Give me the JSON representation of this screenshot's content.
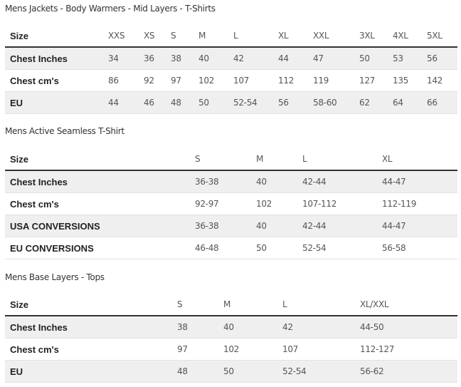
{
  "tables": [
    {
      "title": "Mens Jackets - Body Warmers - Mid Layers - T-Shirts",
      "header": [
        "Size",
        "XXS",
        "XS",
        "S",
        "M",
        "L",
        "XL",
        "XXL",
        "3XL",
        "4XL",
        "5XL"
      ],
      "rows": [
        [
          "Chest Inches",
          "34",
          "36",
          "38",
          "40",
          "42",
          "44",
          "47",
          "50",
          "53",
          "56"
        ],
        [
          "Chest cm's",
          "86",
          "92",
          "97",
          "102",
          "107",
          "112",
          "119",
          "127",
          "135",
          "142"
        ],
        [
          "EU",
          "44",
          "46",
          "48",
          "50",
          "52-54",
          "56",
          "58-60",
          "62",
          "64",
          "66"
        ]
      ]
    },
    {
      "title": "Mens Active Seamless T-Shirt",
      "header": [
        "Size",
        "S",
        "M",
        "L",
        "XL"
      ],
      "rows": [
        [
          "Chest Inches",
          "36-38",
          "40",
          "42-44",
          "44-47"
        ],
        [
          "Chest cm's",
          "92-97",
          "102",
          "107-112",
          "112-119"
        ],
        [
          "USA CONVERSIONS",
          "36-38",
          "40",
          "42-44",
          "44-47"
        ],
        [
          "EU CONVERSIONS",
          "46-48",
          "50",
          "52-54",
          "56-58"
        ]
      ]
    },
    {
      "title": "Mens Base Layers - Tops",
      "header": [
        "Size",
        "S",
        "M",
        "L",
        "XL/XXL"
      ],
      "rows": [
        [
          "Chest Inches",
          "38",
          "40",
          "42",
          "44-50"
        ],
        [
          "Chest cm's",
          "97",
          "102",
          "107",
          "112-127"
        ],
        [
          "EU",
          "48",
          "50",
          "52-54",
          "56-62"
        ]
      ]
    }
  ]
}
